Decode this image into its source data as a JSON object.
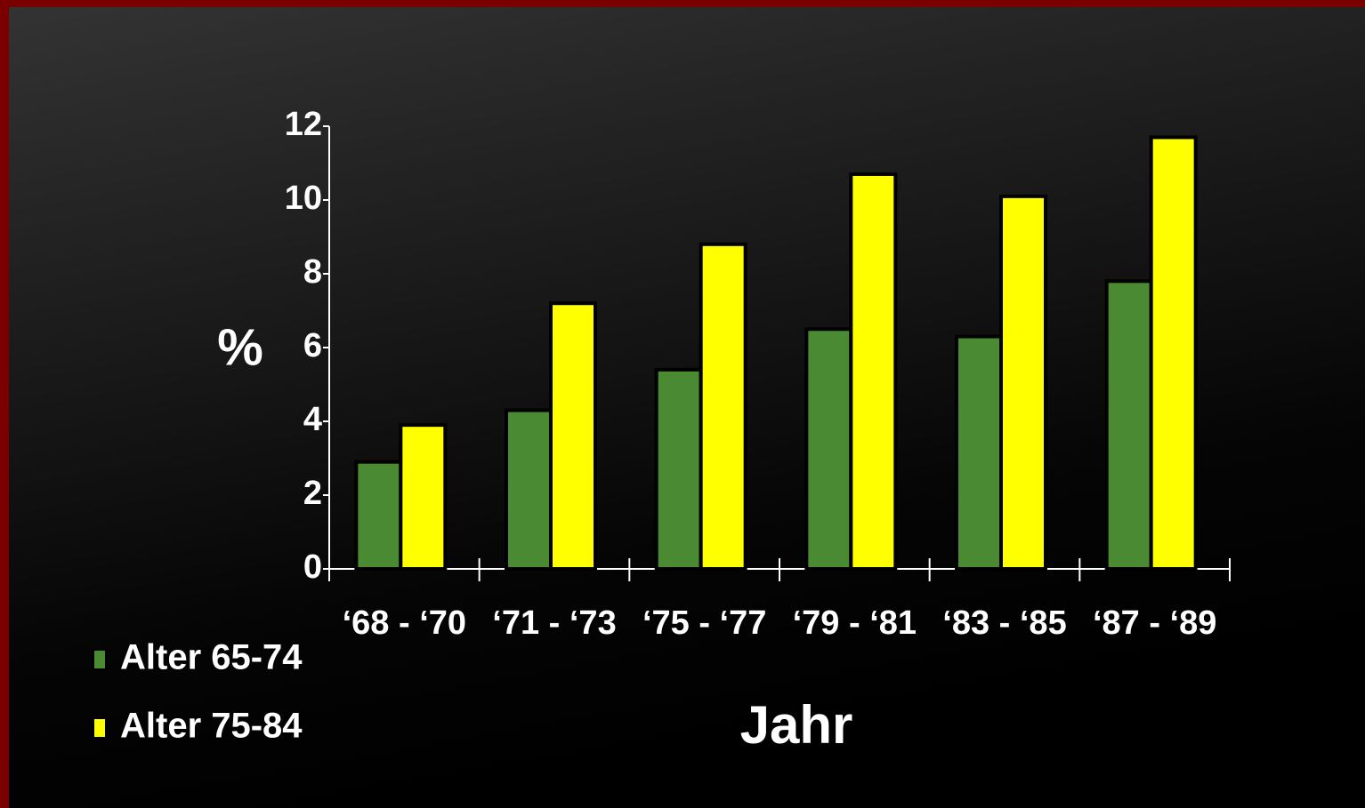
{
  "chart_data": {
    "type": "bar",
    "categories": [
      "‘68 - ‘70",
      "‘71 - ‘73",
      "‘75 - ‘77",
      "‘79 - ‘81",
      "‘83 - ‘85",
      "‘87 - ‘89"
    ],
    "series": [
      {
        "name": "Alter 65-74",
        "color": "#4a8a32",
        "values": [
          2.9,
          4.3,
          5.4,
          6.5,
          6.3,
          7.8
        ]
      },
      {
        "name": "Alter 75-84",
        "color": "#ffff00",
        "values": [
          3.9,
          7.2,
          8.8,
          10.7,
          10.1,
          11.7
        ]
      }
    ],
    "ylim": [
      0,
      12
    ],
    "yticks": [
      0,
      2,
      4,
      6,
      8,
      10,
      12
    ],
    "ylabel": "%",
    "xlabel": "Jahr",
    "legend": "bottom-left"
  }
}
